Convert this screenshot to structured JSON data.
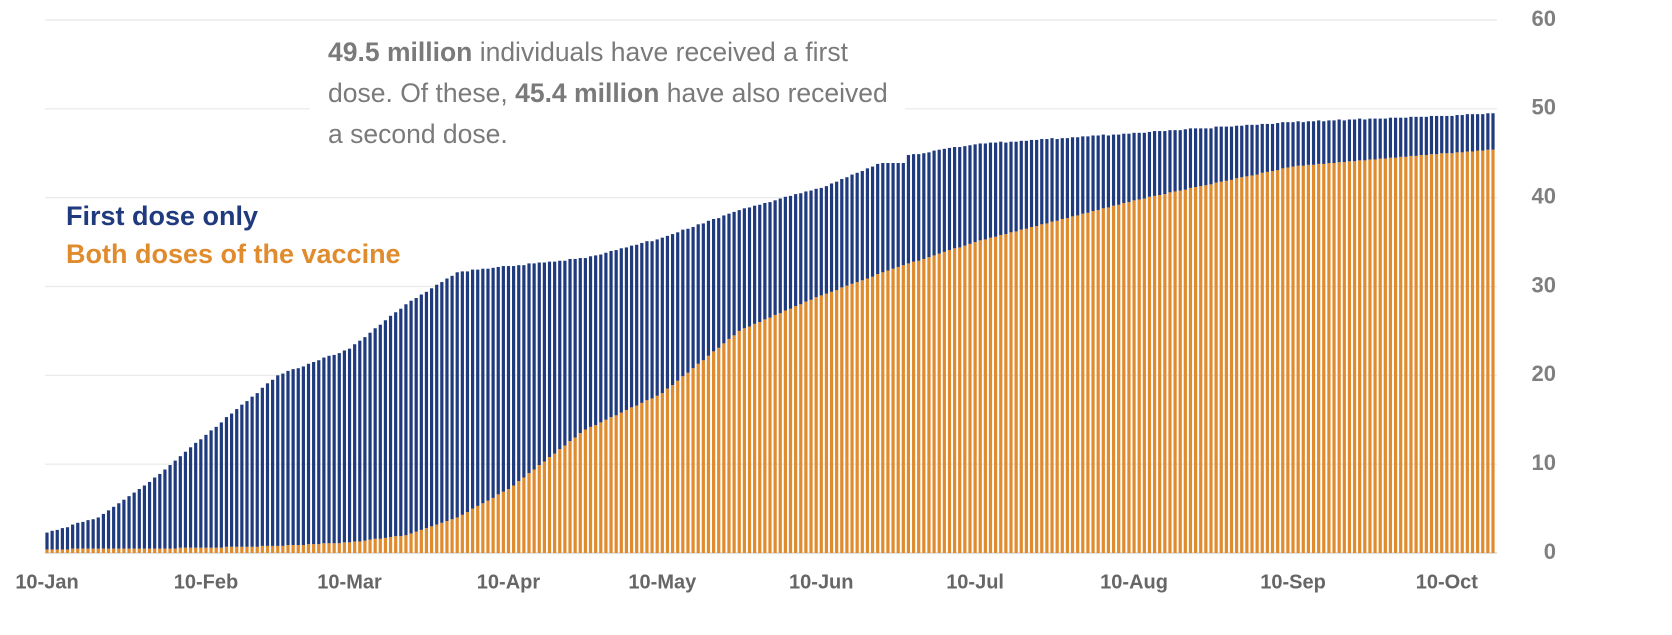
{
  "chart_data": {
    "type": "stacked_bar",
    "annotation": {
      "parts": [
        {
          "text": "49.5 million",
          "bold": true
        },
        {
          "text": " individuals have received a first dose. Of these, ",
          "bold": false
        },
        {
          "text": "45.4 million",
          "bold": true
        },
        {
          "text": " have also received a second dose.",
          "bold": false
        }
      ]
    },
    "y_axis_position": "right",
    "grid": true,
    "ylim": [
      0,
      60
    ],
    "yticks": [
      0,
      10,
      20,
      30,
      40,
      50,
      60
    ],
    "categories": [
      "10-Jan",
      null,
      null,
      null,
      null,
      null,
      null,
      null,
      null,
      null,
      null,
      null,
      null,
      null,
      null,
      null,
      null,
      null,
      null,
      null,
      null,
      null,
      null,
      null,
      null,
      null,
      null,
      null,
      null,
      null,
      null,
      "10-Feb",
      null,
      null,
      null,
      null,
      null,
      null,
      null,
      null,
      null,
      null,
      null,
      null,
      null,
      null,
      null,
      null,
      null,
      null,
      null,
      null,
      null,
      null,
      null,
      null,
      null,
      null,
      null,
      "10-Mar",
      null,
      null,
      null,
      null,
      null,
      null,
      null,
      null,
      null,
      null,
      null,
      null,
      null,
      null,
      null,
      null,
      null,
      null,
      null,
      null,
      null,
      null,
      null,
      null,
      null,
      null,
      null,
      null,
      null,
      null,
      "10-Apr",
      null,
      null,
      null,
      null,
      null,
      null,
      null,
      null,
      null,
      null,
      null,
      null,
      null,
      null,
      null,
      null,
      null,
      null,
      null,
      null,
      null,
      null,
      null,
      null,
      null,
      null,
      null,
      null,
      null,
      "10-May",
      null,
      null,
      null,
      null,
      null,
      null,
      null,
      null,
      null,
      null,
      null,
      null,
      null,
      null,
      null,
      null,
      null,
      null,
      null,
      null,
      null,
      null,
      null,
      null,
      null,
      null,
      null,
      null,
      null,
      null,
      "10-Jun",
      null,
      null,
      null,
      null,
      null,
      null,
      null,
      null,
      null,
      null,
      null,
      null,
      null,
      null,
      null,
      null,
      null,
      null,
      null,
      null,
      null,
      null,
      null,
      null,
      null,
      null,
      null,
      null,
      null,
      "10-Jul",
      null,
      null,
      null,
      null,
      null,
      null,
      null,
      null,
      null,
      null,
      null,
      null,
      null,
      null,
      null,
      null,
      null,
      null,
      null,
      null,
      null,
      null,
      null,
      null,
      null,
      null,
      null,
      null,
      null,
      null,
      "10-Aug",
      null,
      null,
      null,
      null,
      null,
      null,
      null,
      null,
      null,
      null,
      null,
      null,
      null,
      null,
      null,
      null,
      null,
      null,
      null,
      null,
      null,
      null,
      null,
      null,
      null,
      null,
      null,
      null,
      null,
      null,
      "10-Sep",
      null,
      null,
      null,
      null,
      null,
      null,
      null,
      null,
      null,
      null,
      null,
      null,
      null,
      null,
      null,
      null,
      null,
      null,
      null,
      null,
      null,
      null,
      null,
      null,
      null,
      null,
      null,
      null,
      null,
      "10-Oct",
      null,
      null,
      null,
      null,
      null,
      null,
      null,
      null,
      null
    ],
    "series": [
      {
        "name": "First dose only",
        "color": "#1f3a7d",
        "values": [
          1.9,
          2.1,
          2.2,
          2.4,
          2.5,
          2.7,
          2.9,
          3,
          3.2,
          3.3,
          3.5,
          3.9,
          4.3,
          4.7,
          5.1,
          5.5,
          5.9,
          6.3,
          6.7,
          7.1,
          7.5,
          8,
          8.4,
          8.9,
          9.4,
          9.9,
          10.3,
          10.8,
          11.3,
          11.8,
          12.2,
          12.7,
          13.2,
          13.6,
          14.1,
          14.6,
          15,
          15.5,
          16,
          16.4,
          16.9,
          17.3,
          17.8,
          18.3,
          18.7,
          19.2,
          19.4,
          19.6,
          19.8,
          19.9,
          20.1,
          20.3,
          20.5,
          20.7,
          20.9,
          21.1,
          21.2,
          21.4,
          21.6,
          21.8,
          22.2,
          22.6,
          22.9,
          23.3,
          23.7,
          24.1,
          24.5,
          24.9,
          25.2,
          25.6,
          26,
          26.2,
          26.3,
          26.5,
          26.6,
          26.8,
          27,
          27.1,
          27.3,
          27.4,
          27.6,
          27.4,
          27.1,
          26.9,
          26.6,
          26.4,
          26.1,
          25.9,
          25.6,
          25.4,
          25.1,
          24.7,
          24.3,
          23.9,
          23.6,
          23.2,
          22.8,
          22.4,
          22,
          21.6,
          21.2,
          20.8,
          20.5,
          20.1,
          19.7,
          19.3,
          19.2,
          19.1,
          18.9,
          18.8,
          18.7,
          18.6,
          18.5,
          18.3,
          18.2,
          18.1,
          18,
          17.9,
          17.7,
          17.6,
          17.5,
          17.2,
          17,
          16.7,
          16.5,
          16.2,
          15.9,
          15.7,
          15.4,
          15.2,
          14.9,
          14.6,
          14.4,
          14.1,
          13.9,
          13.6,
          13.5,
          13.4,
          13.3,
          13.2,
          13.1,
          13,
          12.9,
          12.9,
          12.8,
          12.7,
          12.6,
          12.5,
          12.4,
          12.3,
          12.2,
          12.1,
          12.1,
          12.2,
          12.2,
          12.2,
          12.2,
          12.3,
          12.3,
          12.3,
          12.4,
          12.4,
          12.4,
          12.4,
          12.5,
          12.5,
          12.4,
          12.3,
          12.2,
          12.1,
          12,
          11.9,
          11.8,
          11.8,
          11.7,
          11.6,
          11.5,
          11.4,
          11.3,
          11.2,
          11.1,
          11,
          10.9,
          10.8,
          10.7,
          10.6,
          10.5,
          10.3,
          10.2,
          10.1,
          10,
          9.9,
          9.8,
          9.7,
          9.6,
          9.5,
          9.4,
          9.2,
          9.1,
          9,
          8.9,
          8.8,
          8.7,
          8.6,
          8.5,
          8.4,
          8.3,
          8.1,
          8,
          7.9,
          7.8,
          7.7,
          7.6,
          7.5,
          7.4,
          7.3,
          7.3,
          7.2,
          7.1,
          7,
          6.9,
          6.8,
          6.8,
          6.7,
          6.6,
          6.5,
          6.4,
          6.3,
          6.3,
          6.2,
          6.1,
          6,
          5.9,
          5.8,
          5.8,
          5.7,
          5.6,
          5.5,
          5.4,
          5.3,
          5.3,
          5.2,
          5.1,
          5,
          5,
          4.9,
          4.9,
          4.9,
          4.9,
          4.8,
          4.8,
          4.8,
          4.8,
          4.7,
          4.7,
          4.7,
          4.7,
          4.6,
          4.6,
          4.6,
          4.5,
          4.5,
          4.5,
          4.5,
          4.4,
          4.4,
          4.4,
          4.4,
          4.3,
          4.3,
          4.3,
          4.3,
          4.2,
          4.2,
          4.2,
          4.2,
          4.2,
          4.2,
          4.2,
          4.1,
          4.1,
          4.1,
          4.1
        ]
      },
      {
        "name": "Both doses of the vaccine",
        "color": "#e08b2d",
        "values": [
          0.4,
          0.4,
          0.4,
          0.4,
          0.4,
          0.5,
          0.5,
          0.5,
          0.5,
          0.5,
          0.5,
          0.5,
          0.5,
          0.5,
          0.5,
          0.5,
          0.5,
          0.5,
          0.5,
          0.5,
          0.5,
          0.5,
          0.5,
          0.5,
          0.5,
          0.5,
          0.6,
          0.6,
          0.6,
          0.6,
          0.6,
          0.6,
          0.6,
          0.6,
          0.6,
          0.7,
          0.7,
          0.7,
          0.7,
          0.7,
          0.7,
          0.7,
          0.8,
          0.8,
          0.8,
          0.8,
          0.8,
          0.9,
          0.9,
          0.9,
          0.9,
          1,
          1,
          1,
          1.1,
          1.1,
          1.1,
          1.1,
          1.2,
          1.2,
          1.3,
          1.3,
          1.4,
          1.5,
          1.6,
          1.6,
          1.7,
          1.8,
          1.9,
          1.9,
          2,
          2.2,
          2.4,
          2.6,
          2.8,
          3,
          3.2,
          3.4,
          3.6,
          3.8,
          4,
          4.3,
          4.6,
          5,
          5.3,
          5.6,
          5.9,
          6.2,
          6.6,
          6.9,
          7.2,
          7.6,
          8.1,
          8.5,
          9,
          9.4,
          9.9,
          10.3,
          10.8,
          11.2,
          11.7,
          12.1,
          12.6,
          13,
          13.5,
          13.9,
          14.2,
          14.4,
          14.7,
          15,
          15.3,
          15.5,
          15.8,
          16.1,
          16.4,
          16.6,
          16.9,
          17.2,
          17.4,
          17.7,
          18,
          18.5,
          18.9,
          19.4,
          19.9,
          20.3,
          20.8,
          21.3,
          21.7,
          22.2,
          22.7,
          23.1,
          23.6,
          24.1,
          24.5,
          25,
          25.3,
          25.5,
          25.8,
          26,
          26.3,
          26.5,
          26.8,
          27,
          27.3,
          27.5,
          27.8,
          28,
          28.3,
          28.5,
          28.8,
          29,
          29.2,
          29.4,
          29.6,
          29.9,
          30.1,
          30.3,
          30.5,
          30.7,
          30.9,
          31.1,
          31.4,
          31.6,
          31.8,
          32,
          32.2,
          32.4,
          32.6,
          32.8,
          32.9,
          33.1,
          33.3,
          33.5,
          33.7,
          33.9,
          34.1,
          34.3,
          34.4,
          34.6,
          34.8,
          35,
          35.2,
          35.3,
          35.5,
          35.6,
          35.8,
          35.9,
          36.1,
          36.2,
          36.4,
          36.5,
          36.7,
          36.8,
          37,
          37.1,
          37.3,
          37.4,
          37.6,
          37.7,
          37.9,
          38,
          38.2,
          38.3,
          38.5,
          38.6,
          38.8,
          38.9,
          39.1,
          39.2,
          39.4,
          39.5,
          39.7,
          39.8,
          39.9,
          40.1,
          40.2,
          40.3,
          40.4,
          40.6,
          40.7,
          40.8,
          40.9,
          41.1,
          41.2,
          41.3,
          41.4,
          41.5,
          41.7,
          41.8,
          41.9,
          42,
          42.2,
          42.3,
          42.4,
          42.5,
          42.6,
          42.8,
          42.9,
          43,
          43.1,
          43.3,
          43.4,
          43.5,
          43.6,
          43.6,
          43.7,
          43.7,
          43.8,
          43.8,
          43.9,
          43.9,
          44,
          44,
          44.1,
          44.1,
          44.2,
          44.2,
          44.3,
          44.3,
          44.4,
          44.4,
          44.5,
          44.5,
          44.6,
          44.6,
          44.7,
          44.7,
          44.8,
          44.8,
          44.9,
          44.9,
          45,
          45,
          45,
          45.1,
          45.1,
          45.2,
          45.2,
          45.3,
          45.3,
          45.4,
          45.4
        ]
      }
    ]
  }
}
